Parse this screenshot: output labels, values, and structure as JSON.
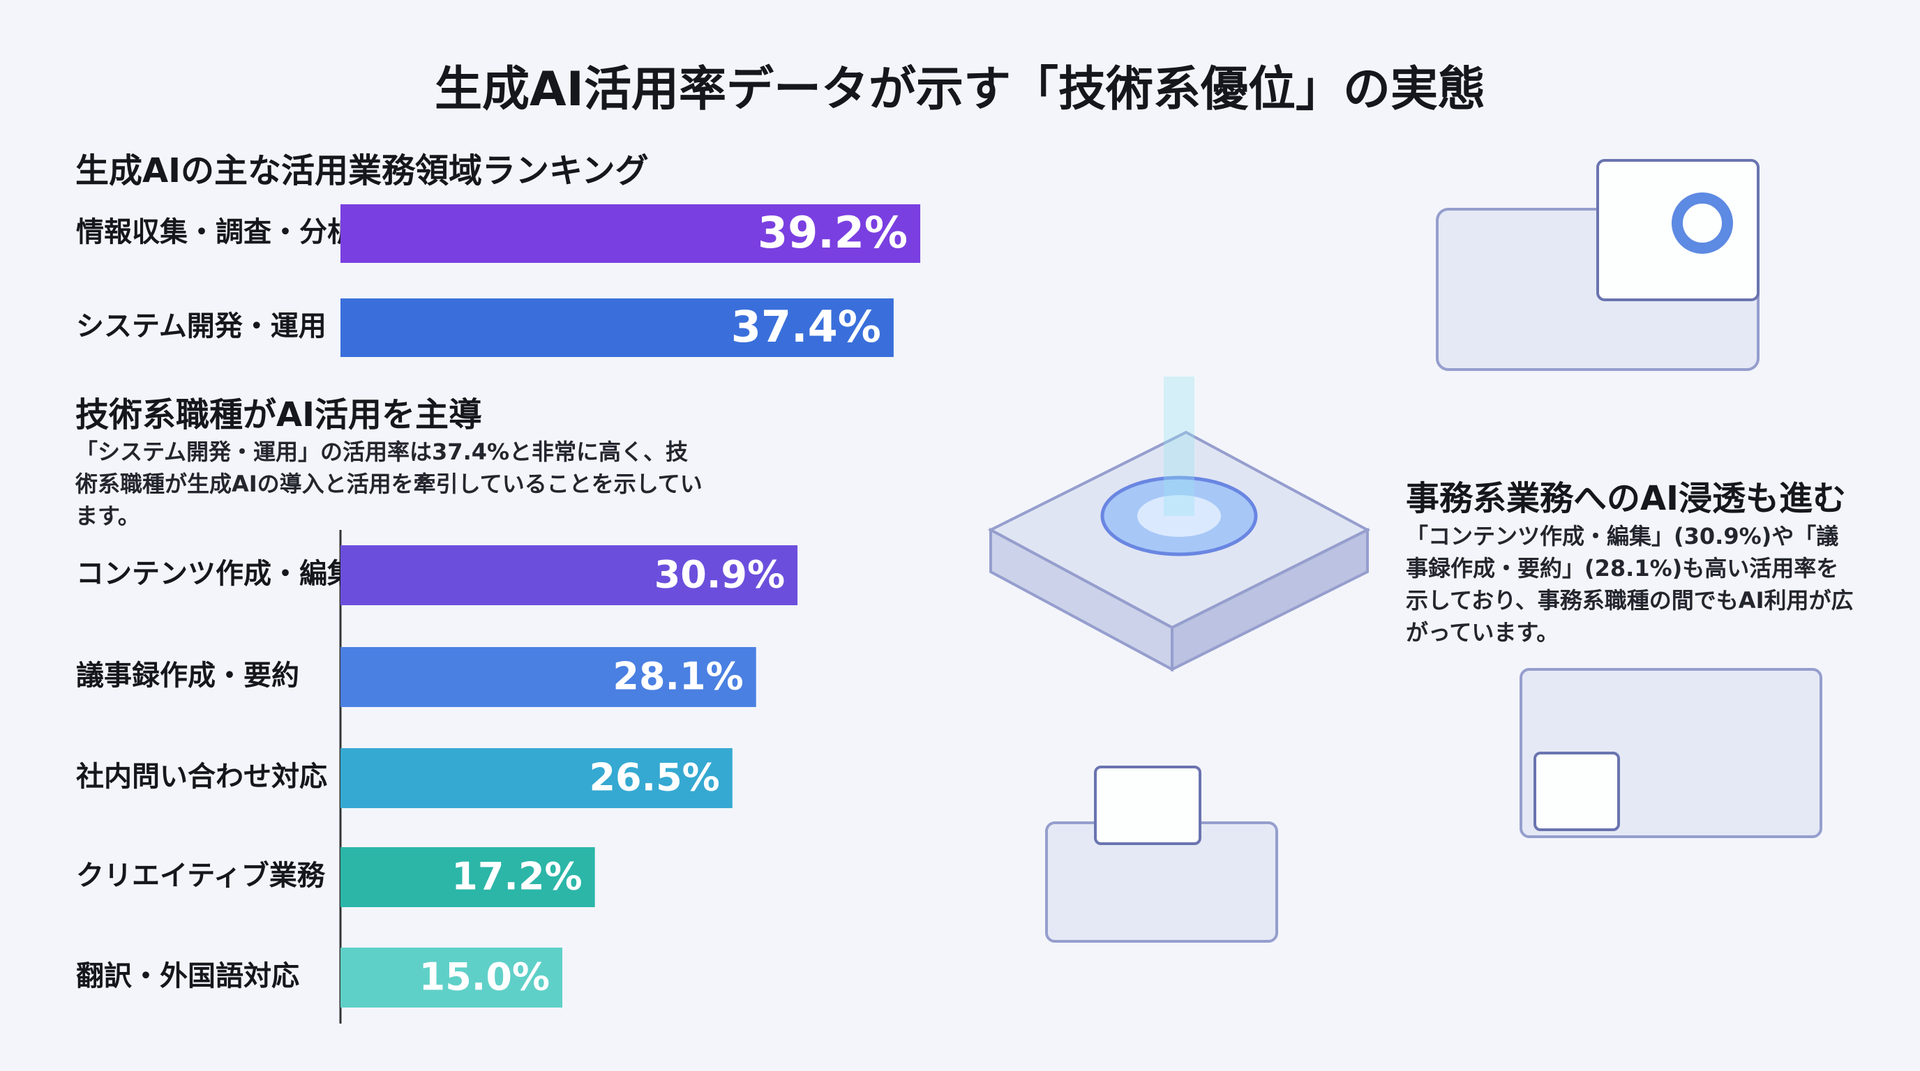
{
  "title": "生成AI活用率データが示す「技術系優位」の実態",
  "chart_data": [
    {
      "type": "bar",
      "title": "生成AIの主な活用業務領域ランキング",
      "categories": [
        "情報収集・調査・分析",
        "システム開発・運用"
      ],
      "values": [
        39.2,
        37.4
      ],
      "value_labels": [
        "39.2%",
        "37.4%"
      ],
      "colors": [
        "#7a3fe0",
        "#3a6fdb"
      ]
    },
    {
      "type": "bar",
      "categories": [
        "コンテンツ作成・編集",
        "議事録作成・要約",
        "社内問い合わせ対応",
        "クリエイティブ業務",
        "翻訳・外国語対応"
      ],
      "values": [
        30.9,
        28.1,
        26.5,
        17.2,
        15.0
      ],
      "value_labels": [
        "30.9%",
        "28.1%",
        "26.5%",
        "17.2%",
        "15.0%"
      ],
      "colors": [
        "#6b4fdc",
        "#4a80e2",
        "#35a9d2",
        "#2bb6a8",
        "#5fd0c8"
      ]
    }
  ],
  "notes": [
    {
      "heading": "技術系職種がAI活用を主導",
      "text": "「システム開発・運用」の活用率は37.4%と非常に高く、技術系職種が生成AIの導入と活用を牽引していることを示しています。"
    },
    {
      "heading": "事務系業務へのAI浸透も進む",
      "text": "「コンテンツ作成・編集」(30.9%)や「議事録作成・要約」(28.1%)も高い活用率を示しており、事務系職種の間でもAI利用が広がっています。"
    }
  ]
}
